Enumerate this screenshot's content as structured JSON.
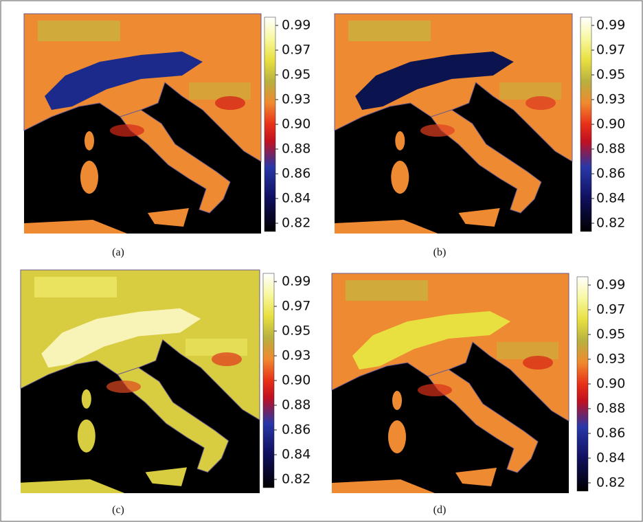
{
  "panels": [
    {
      "label": "(a)",
      "colorbar": {
        "ticks": [
          0.99,
          0.97,
          0.95,
          0.93,
          {
            "value": 0.9,
            "label": "0.90"
          },
          0.88,
          0.86,
          0.84,
          0.82
        ]
      }
    },
    {
      "label": "(b)",
      "colorbar": {
        "ticks": [
          0.99,
          0.97,
          0.95,
          0.93,
          {
            "value": 0.9,
            "label": "0.90"
          },
          0.88,
          0.86,
          0.84,
          0.82
        ]
      }
    },
    {
      "label": "(c)",
      "colorbar": {
        "ticks": [
          0.99,
          0.97,
          0.95,
          0.93,
          {
            "value": 0.9,
            "label": "0.90"
          },
          0.88,
          0.86,
          0.84,
          0.82
        ]
      }
    },
    {
      "label": "(d)",
      "colorbar": {
        "ticks": [
          0.99,
          0.97,
          0.95,
          0.93,
          {
            "value": 0.9,
            "label": "0.90"
          },
          0.88,
          0.86,
          0.84,
          0.82
        ]
      }
    }
  ]
}
